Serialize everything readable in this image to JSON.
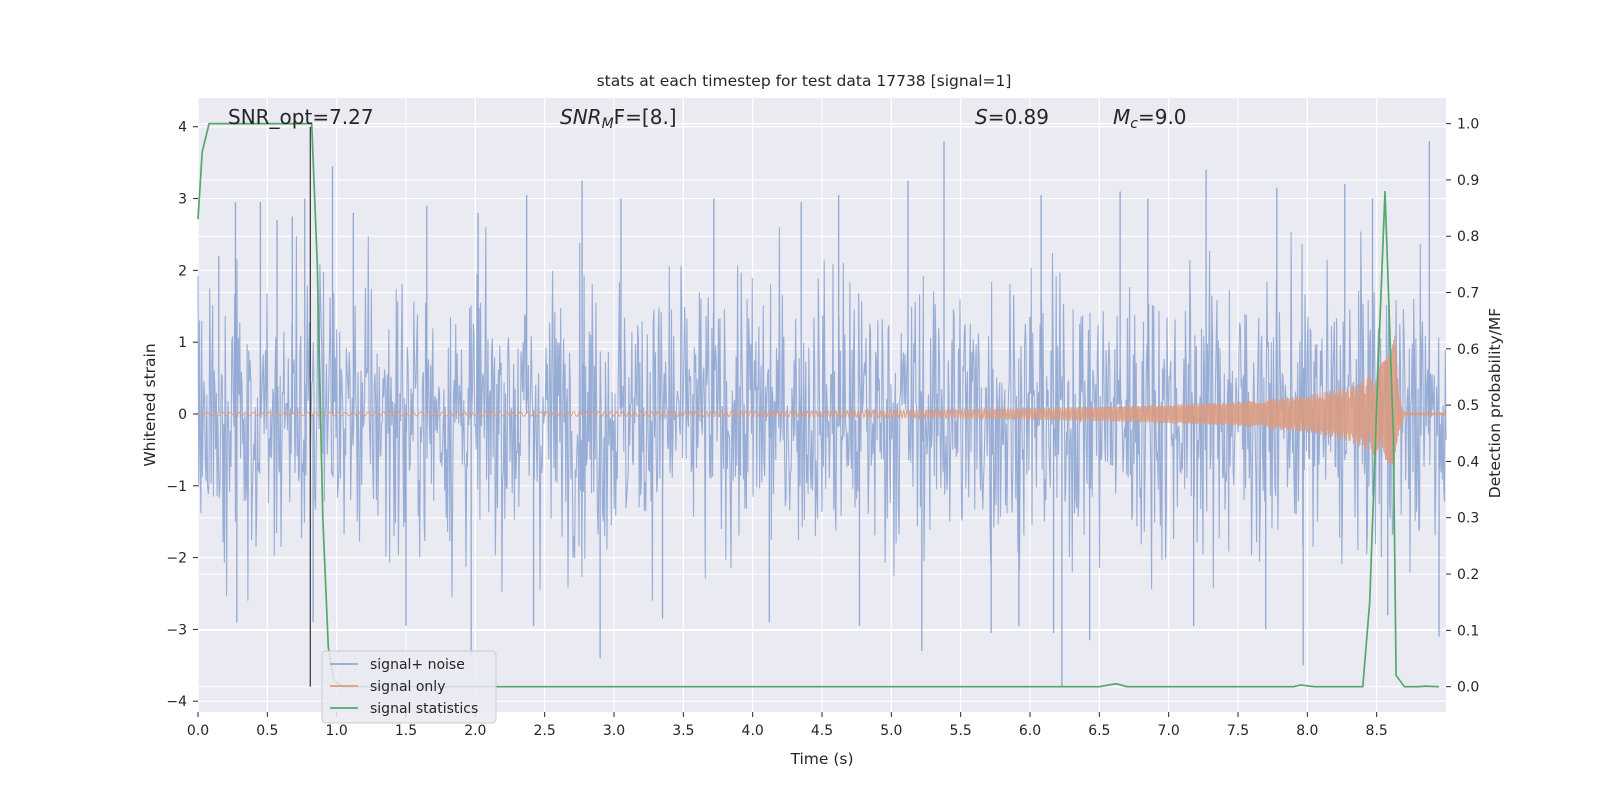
{
  "chart_data": {
    "type": "line",
    "title": "stats at each timestep for test data 17738 [signal=1]",
    "xlabel": "Time (s)",
    "ylabel": "Whitened strain",
    "ylabel_right": "Detection probability/MF",
    "xlim": [
      0.0,
      9.0
    ],
    "ylim": [
      -4.15,
      4.4
    ],
    "ylim_right": [
      -0.045,
      1.0455
    ],
    "x_ticks": [
      "0.0",
      "0.5",
      "1.0",
      "1.5",
      "2.0",
      "2.5",
      "3.0",
      "3.5",
      "4.0",
      "4.5",
      "5.0",
      "5.5",
      "6.0",
      "6.5",
      "7.0",
      "7.5",
      "8.0",
      "8.5"
    ],
    "y_ticks": [
      "4",
      "3",
      "2",
      "1",
      "0",
      "−1",
      "−2",
      "−3",
      "−4"
    ],
    "y_ticks_right": [
      "1.0",
      "0.9",
      "0.8",
      "0.7",
      "0.6",
      "0.5",
      "0.4",
      "0.3",
      "0.2",
      "0.1",
      "0.0"
    ],
    "grid": true,
    "legend_position": "lower-left",
    "annotations": [
      {
        "key": "snr_opt",
        "text": "SNR_opt=7.27"
      },
      {
        "key": "snr_mf",
        "prefix": "SNR",
        "sub": "M",
        "suffix": "F=[8.]"
      },
      {
        "key": "s",
        "prefix": "S",
        "suffix": "=0.89"
      },
      {
        "key": "mc",
        "prefix": "M",
        "sub": "c",
        "suffix": "=9.0"
      }
    ],
    "vertical_marker_x": 0.81,
    "series": [
      {
        "name": "signal+ noise",
        "color": "#8fa6d1",
        "description": "dense whitened noise, amplitude mostly within about -2.5..2.5 with spikes to about 3.8 / -3.9",
        "spikes": [
          [
            0.15,
            2.2
          ],
          [
            0.27,
            2.95
          ],
          [
            0.45,
            2.95
          ],
          [
            0.57,
            2.7
          ],
          [
            0.68,
            2.75
          ],
          [
            0.77,
            3.0
          ],
          [
            0.97,
            3.45
          ],
          [
            1.12,
            2.8
          ],
          [
            1.65,
            2.9
          ],
          [
            2.02,
            2.8
          ],
          [
            2.37,
            3.05
          ],
          [
            2.77,
            3.25
          ],
          [
            3.05,
            3.0
          ],
          [
            3.72,
            3.0
          ],
          [
            4.35,
            2.95
          ],
          [
            4.62,
            3.05
          ],
          [
            5.12,
            3.25
          ],
          [
            5.38,
            3.8
          ],
          [
            6.08,
            3.05
          ],
          [
            6.65,
            3.1
          ],
          [
            6.85,
            3.0
          ],
          [
            7.27,
            3.4
          ],
          [
            7.78,
            3.15
          ],
          [
            8.27,
            3.2
          ],
          [
            8.47,
            3.0
          ],
          [
            8.88,
            3.8
          ],
          [
            0.28,
            -2.9
          ],
          [
            0.83,
            -2.9
          ],
          [
            1.5,
            -2.95
          ],
          [
            1.97,
            -3.35
          ],
          [
            2.42,
            -2.95
          ],
          [
            2.9,
            -3.4
          ],
          [
            3.35,
            -2.85
          ],
          [
            4.12,
            -2.9
          ],
          [
            4.77,
            -2.95
          ],
          [
            5.22,
            -3.3
          ],
          [
            5.72,
            -3.05
          ],
          [
            5.92,
            -2.95
          ],
          [
            6.17,
            -3.05
          ],
          [
            6.23,
            -3.8
          ],
          [
            6.43,
            -3.15
          ],
          [
            7.18,
            -2.95
          ],
          [
            7.7,
            -3.0
          ],
          [
            7.97,
            -3.5
          ],
          [
            8.58,
            -2.8
          ],
          [
            8.95,
            -3.1
          ]
        ]
      },
      {
        "name": "signal only",
        "color": "#dd9a7e",
        "description": "chirp signal growing from ~0 near 5.0 s to peak ~1.1 at about 8.6 s, then ringdown",
        "envelope": [
          [
            0.0,
            0.02
          ],
          [
            4.5,
            0.04
          ],
          [
            5.5,
            0.06
          ],
          [
            6.5,
            0.1
          ],
          [
            7.0,
            0.13
          ],
          [
            7.5,
            0.17
          ],
          [
            8.0,
            0.26
          ],
          [
            8.3,
            0.38
          ],
          [
            8.5,
            0.6
          ],
          [
            8.6,
            0.9
          ],
          [
            8.63,
            1.1
          ],
          [
            8.66,
            0.3
          ],
          [
            8.7,
            0.02
          ],
          [
            9.0,
            0.01
          ]
        ]
      },
      {
        "name": "signal statistics",
        "color": "#55a868",
        "axis": "right",
        "x": [
          0.0,
          0.03,
          0.08,
          0.15,
          0.3,
          0.5,
          0.7,
          0.8,
          0.82,
          0.86,
          0.9,
          0.94,
          0.98,
          1.05,
          2.0,
          3.0,
          4.0,
          5.0,
          6.0,
          6.5,
          6.62,
          6.7,
          7.0,
          7.5,
          7.9,
          7.95,
          8.05,
          8.4,
          8.45,
          8.5,
          8.56,
          8.62,
          8.64,
          8.7,
          8.8,
          8.85,
          8.95
        ],
        "y": [
          0.83,
          0.95,
          1.0,
          1.0,
          1.0,
          1.0,
          1.0,
          1.0,
          1.0,
          0.75,
          0.3,
          0.07,
          0.01,
          0.0,
          0.0,
          0.0,
          0.0,
          0.0,
          0.0,
          0.0,
          0.005,
          0.0,
          0.0,
          0.0,
          0.0,
          0.003,
          0.0,
          0.0,
          0.15,
          0.5,
          0.88,
          0.45,
          0.02,
          0.0,
          0.0,
          0.001,
          0.0
        ]
      }
    ]
  }
}
